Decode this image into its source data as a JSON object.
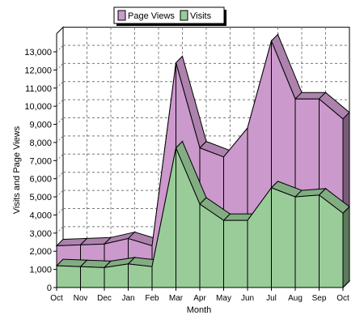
{
  "chart_data": {
    "type": "area",
    "title": "",
    "xlabel": "Month",
    "ylabel": "Visits and Page Views",
    "categories": [
      "Oct",
      "Nov",
      "Dec",
      "Jan",
      "Feb",
      "Mar",
      "Apr",
      "May",
      "Jun",
      "Jul",
      "Aug",
      "Sep",
      "Oct"
    ],
    "series": [
      {
        "name": "Page Views",
        "color": "#cc99cc",
        "values": [
          2300,
          2350,
          2400,
          2700,
          2300,
          12400,
          7700,
          7200,
          8800,
          13600,
          10400,
          10400,
          9300
        ]
      },
      {
        "name": "Visits",
        "color": "#99cc99",
        "values": [
          1200,
          1150,
          1100,
          1300,
          1150,
          7700,
          4600,
          3700,
          3700,
          5500,
          5000,
          5100,
          4100
        ]
      }
    ],
    "ylim": [
      0,
      14000
    ],
    "yticks": [
      0,
      1000,
      2000,
      3000,
      4000,
      5000,
      6000,
      7000,
      8000,
      9000,
      10000,
      11000,
      12000,
      13000
    ],
    "ytick_labels": [
      "0",
      "1,000",
      "2,000",
      "3,000",
      "4,000",
      "5,000",
      "6,000",
      "7,000",
      "8,000",
      "9,000",
      "10,000",
      "11,000",
      "12,000",
      "13,000"
    ],
    "grid": true,
    "grid_style": "dashed",
    "legend_position": "top-center",
    "style": "3d"
  }
}
